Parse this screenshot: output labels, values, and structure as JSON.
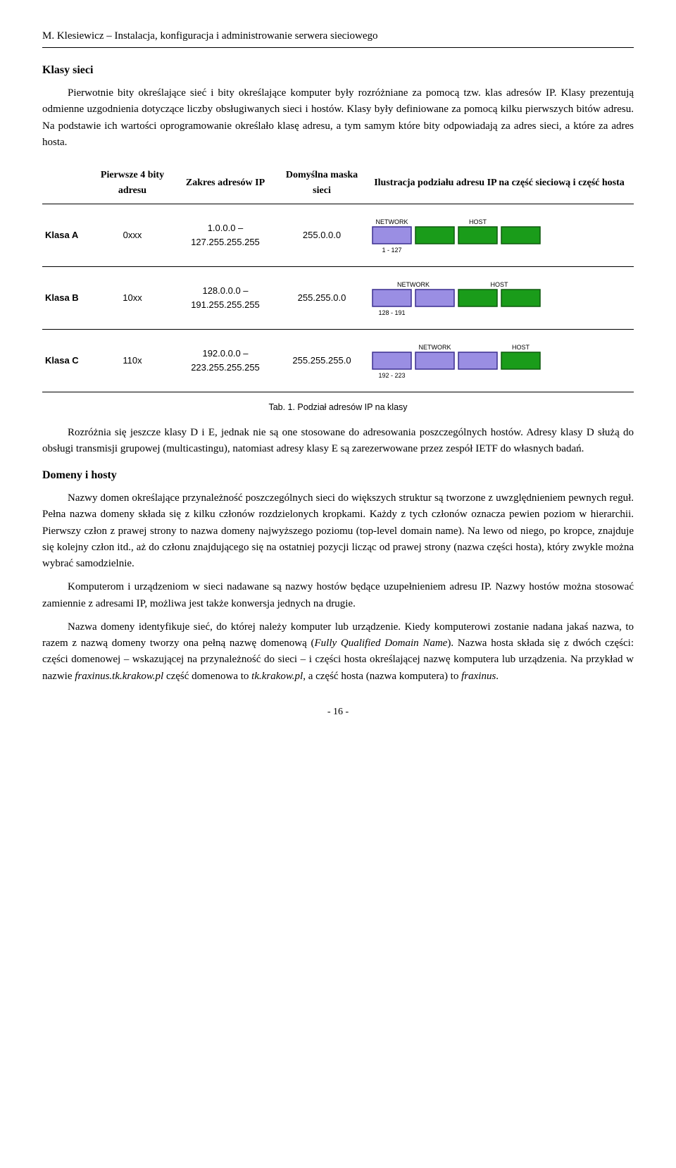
{
  "header": "M. Klesiewicz – Instalacja, konfiguracja i administrowanie serwera sieciowego",
  "section1_title": "Klasy sieci",
  "para1": "Pierwotnie bity określające sieć i bity określające komputer były rozróżniane za pomocą tzw. klas adresów IP. Klasy prezentują odmienne uzgodnienia dotyczące liczby obsługiwanych sieci i hostów. Klasy były definiowane za pomocą kilku pierwszych bitów adresu. Na podstawie ich wartości oprogramowanie określało klasę adresu, a tym samym które bity odpowiadają za adres sieci, a które za adres hosta.",
  "table": {
    "col1": "Pierwsze 4 bity adresu",
    "col2": "Zakres adresów IP",
    "col3": "Domyślna maska sieci",
    "col4": "Ilustracja podziału adresu IP na część sieciową i część hosta",
    "rows": [
      {
        "label": "Klasa A",
        "bits": "0xxx",
        "range": "1.0.0.0 – 127.255.255.255",
        "mask": "255.0.0.0",
        "net_label": "NETWORK",
        "host_label": "HOST",
        "range_label": "1 - 127",
        "net_blocks": 1,
        "host_blocks": 3
      },
      {
        "label": "Klasa B",
        "bits": "10xx",
        "range": "128.0.0.0 – 191.255.255.255",
        "mask": "255.255.0.0",
        "net_label": "NETWORK",
        "host_label": "HOST",
        "range_label": "128 - 191",
        "net_blocks": 2,
        "host_blocks": 2
      },
      {
        "label": "Klasa C",
        "bits": "110x",
        "range": "192.0.0.0 – 223.255.255.255",
        "mask": "255.255.255.0",
        "net_label": "NETWORK",
        "host_label": "HOST",
        "range_label": "192 - 223",
        "net_blocks": 3,
        "host_blocks": 1
      }
    ],
    "styling": {
      "net_fill": "#9a8ee3",
      "net_stroke": "#3b2e8f",
      "host_fill": "#1a9c1a",
      "host_stroke": "#0e5a0e",
      "block_w": 55,
      "block_h": 24,
      "gap": 6,
      "label_fontsize": 9,
      "range_fontsize": 9
    }
  },
  "caption": "Tab. 1. Podział adresów IP na klasy",
  "para2": "Rozróżnia się jeszcze klasy D i E, jednak nie są one stosowane do adresowania poszczególnych hostów. Adresy klasy D służą do obsługi transmisji grupowej (multicastingu), natomiast adresy klasy E są zarezerwowane przez zespół IETF do własnych badań.",
  "section2_title": "Domeny i hosty",
  "para3": "Nazwy domen określające przynależność poszczególnych sieci do większych struktur są tworzone z uwzględnieniem pewnych reguł. Pełna nazwa domeny składa się z kilku członów rozdzielonych kropkami. Każdy z tych członów oznacza pewien poziom w hierarchii. Pierwszy człon z prawej strony to nazwa domeny najwyższego poziomu (top-level domain name). Na lewo od niego, po kropce, znajduje się kolejny człon itd., aż do członu znajdującego się na ostatniej pozycji licząc od prawej strony (nazwa części hosta), który zwykle można wybrać samodzielnie.",
  "para4": "Komputerom i urządzeniom w sieci nadawane są nazwy hostów będące uzupełnieniem adresu IP. Nazwy hostów można stosować zamiennie z adresami IP, możliwa jest także konwersja jednych na drugie.",
  "para5_parts": [
    "Nazwa domeny identyfikuje sieć, do której należy komputer lub urządzenie. Kiedy komputerowi zostanie nadana jakaś nazwa, to razem z nazwą domeny tworzy ona pełną nazwę domenową (",
    "Fully Qualified Domain Name",
    "). Nazwa hosta składa się z dwóch części: części domenowej – wskazującej na przynależność do sieci – i części hosta określającej nazwę komputera lub urządzenia. Na przykład w nazwie ",
    "fraxinus.tk.krakow.pl",
    " część domenowa to ",
    "tk.krakow.pl",
    ", a część hosta (nazwa komputera) to ",
    "fraxinus",
    "."
  ],
  "page_num": "- 16 -"
}
